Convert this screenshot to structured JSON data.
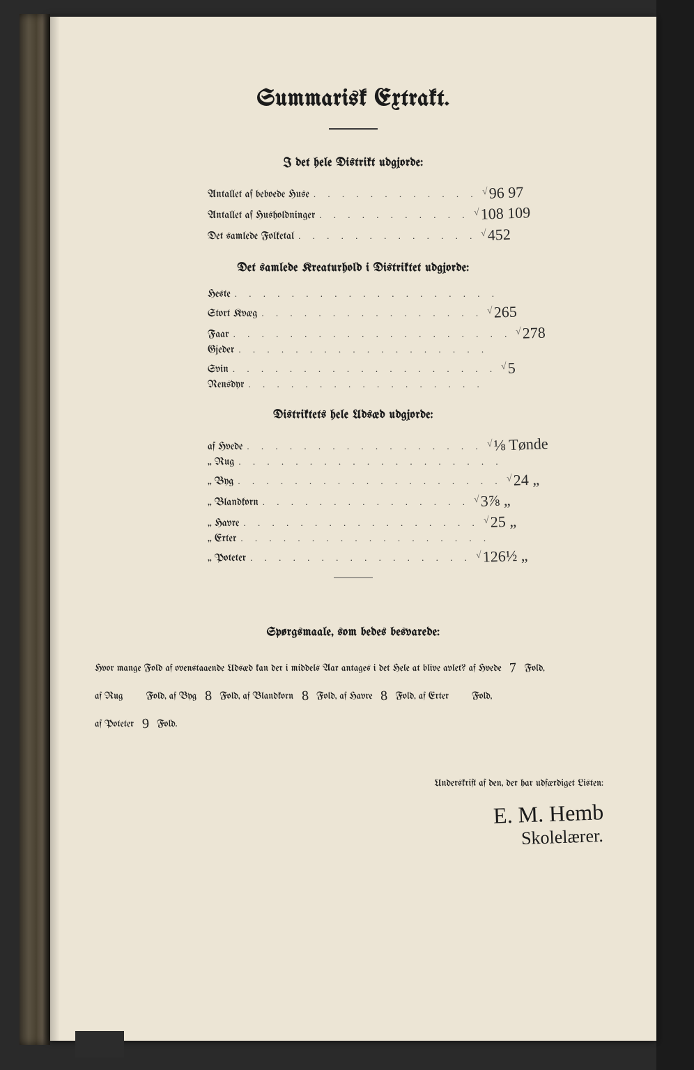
{
  "page": {
    "background_color": "#ece5d5",
    "frame_color": "#1a1a1a",
    "spine_gradient": [
      "#3a342a",
      "#5a5242",
      "#4a4232",
      "#6a6050",
      "#3f3a30"
    ]
  },
  "title": "Summarisk Extrakt.",
  "sections": {
    "district_totals": {
      "heading": "I det hele Distrikt udgjorde:",
      "rows": [
        {
          "label": "Antallet af beboede Huse",
          "dots": ". . . . . . . . . . . .",
          "value": "96 97"
        },
        {
          "label": "Antallet af Husholdninger",
          "dots": ". . . . . . . . . . .",
          "value": "108 109"
        },
        {
          "label": "Det samlede Folketal",
          "dots": ". . . . . . . . . . . . .",
          "value": "452"
        }
      ]
    },
    "livestock": {
      "heading": "Det samlede Kreaturhold i Distriktet udgjorde:",
      "rows": [
        {
          "label": "Heste",
          "dots": ". . . . . . . . . . . . . . . . . . .",
          "value": ""
        },
        {
          "label": "Stort Kvæg",
          "dots": ". . . . . . . . . . . . . . . .",
          "value": "265"
        },
        {
          "label": "Faar",
          "dots": ". . . . . . . . . . . . . . . . . . . .",
          "value": "278"
        },
        {
          "label": "Gjeder",
          "dots": ". . . . . . . . . . . . . . . . . .",
          "value": ""
        },
        {
          "label": "Svin",
          "dots": ". . . . . . . . . . . . . . . . . . .",
          "value": "5"
        },
        {
          "label": "Rensdyr",
          "dots": ". . . . . . . . . . . . . . . . .",
          "value": ""
        }
      ]
    },
    "seed": {
      "heading": "Distriktets hele Udsæd udgjorde:",
      "rows": [
        {
          "label": "af Hvede",
          "dots": ". . . . . . . . . . . . . . . . .",
          "value": "⅛ Tønde"
        },
        {
          "label": "„  Rug",
          "dots": ". . . . . . . . . . . . . . . . . . .",
          "value": ""
        },
        {
          "label": "„  Byg",
          "dots": ". . . . . . . . . . . . . . . . . . .",
          "value": "24  „"
        },
        {
          "label": "„  Blandkorn",
          "dots": ". . . . . . . . . . . . . . .",
          "value": "3⅞  „"
        },
        {
          "label": "„  Havre",
          "dots": ". . . . . . . . . . . . . . . . .",
          "value": "25  „"
        },
        {
          "label": "„  Erter",
          "dots": ". . . . . . . . . . . . . . . . . .",
          "value": ""
        },
        {
          "label": "„  Poteter",
          "dots": ". . . . . . . . . . . . . . . .",
          "value": "126½  „"
        }
      ]
    }
  },
  "question": {
    "heading": "Spørgsmaale, som bedes besvarede:",
    "line1_pre": "Hvor mange Fold af ovenstaaende Udsæd kan der i middels Aar antages i det Hele at blive avlet?  af Hvede",
    "hvede": "7",
    "line1_post": "Fold,",
    "rug_pre": "af Rug",
    "rug": "",
    "byg_pre": "Fold, af Byg",
    "byg": "8",
    "bland_pre": "Fold, af Blandkorn",
    "bland": "8",
    "havre_pre": "Fold, af Havre",
    "havre": "8",
    "erter_pre": "Fold, af Erter",
    "erter": "",
    "erter_post": "Fold,",
    "poteter_pre": "af Poteter",
    "poteter": "9",
    "poteter_post": "Fold."
  },
  "signature": {
    "caption": "Underskrift af den, der har udfærdiget Listen:",
    "name": "E. M. Hemb",
    "role": "Skolelærer."
  },
  "typography": {
    "title_fontsize": 34,
    "section_head_fontsize": 17,
    "row_label_fontsize": 15,
    "handwriting_fontsize": 22,
    "text_color": "#1b1b1b",
    "handwriting_color": "#2b2b2b"
  }
}
